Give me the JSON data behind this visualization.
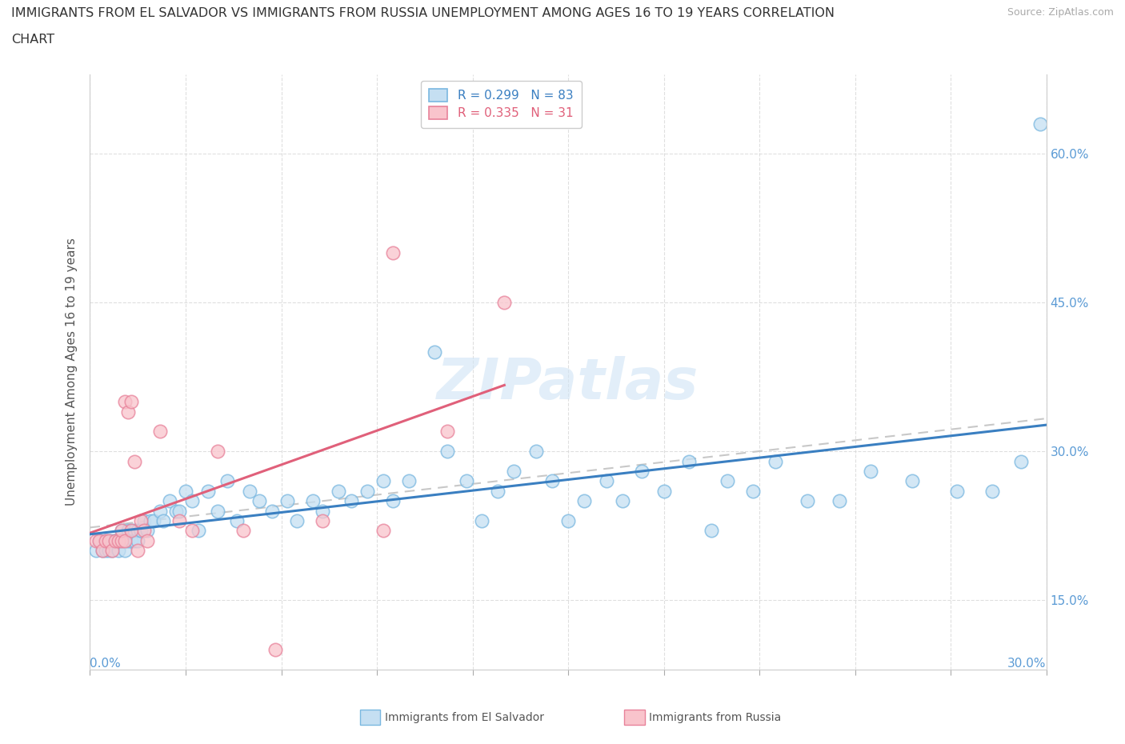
{
  "title_line1": "IMMIGRANTS FROM EL SALVADOR VS IMMIGRANTS FROM RUSSIA UNEMPLOYMENT AMONG AGES 16 TO 19 YEARS CORRELATION",
  "title_line2": "CHART",
  "source": "Source: ZipAtlas.com",
  "ylabel": "Unemployment Among Ages 16 to 19 years",
  "ytick_vals": [
    0.15,
    0.3,
    0.45,
    0.6
  ],
  "ytick_labels": [
    "15.0%",
    "30.0%",
    "45.0%",
    "60.0%"
  ],
  "legend_r1": "R = 0.299",
  "legend_n1": "N = 83",
  "legend_r2": "R = 0.335",
  "legend_n2": "N = 31",
  "el_salvador_color_edge": "#7ab8e0",
  "el_salvador_color_face": "#c5dff2",
  "russia_color_edge": "#e8829a",
  "russia_color_face": "#f9c4cc",
  "trend_blue": "#3a7fc1",
  "trend_pink": "#e0607a",
  "trend_gray": "#c8c8c8",
  "right_axis_color": "#5b9bd5",
  "xmin": 0.0,
  "xmax": 0.3,
  "ymin": 0.08,
  "ymax": 0.68,
  "el_salvador_x": [
    0.002,
    0.003,
    0.004,
    0.005,
    0.005,
    0.006,
    0.006,
    0.007,
    0.007,
    0.008,
    0.008,
    0.009,
    0.009,
    0.01,
    0.01,
    0.011,
    0.011,
    0.012,
    0.012,
    0.013,
    0.013,
    0.014,
    0.014,
    0.015,
    0.015,
    0.016,
    0.016,
    0.017,
    0.018,
    0.019,
    0.02,
    0.022,
    0.023,
    0.025,
    0.027,
    0.028,
    0.03,
    0.032,
    0.034,
    0.037,
    0.04,
    0.043,
    0.046,
    0.05,
    0.053,
    0.057,
    0.062,
    0.065,
    0.07,
    0.073,
    0.078,
    0.082,
    0.087,
    0.092,
    0.095,
    0.1,
    0.108,
    0.112,
    0.118,
    0.123,
    0.128,
    0.133,
    0.14,
    0.145,
    0.15,
    0.155,
    0.162,
    0.167,
    0.173,
    0.18,
    0.188,
    0.195,
    0.2,
    0.208,
    0.215,
    0.225,
    0.235,
    0.245,
    0.258,
    0.272,
    0.283,
    0.292,
    0.298
  ],
  "el_salvador_y": [
    0.2,
    0.21,
    0.2,
    0.21,
    0.2,
    0.21,
    0.2,
    0.21,
    0.2,
    0.21,
    0.21,
    0.21,
    0.2,
    0.22,
    0.21,
    0.21,
    0.2,
    0.22,
    0.21,
    0.22,
    0.21,
    0.22,
    0.21,
    0.22,
    0.21,
    0.22,
    0.22,
    0.23,
    0.22,
    0.23,
    0.23,
    0.24,
    0.23,
    0.25,
    0.24,
    0.24,
    0.26,
    0.25,
    0.22,
    0.26,
    0.24,
    0.27,
    0.23,
    0.26,
    0.25,
    0.24,
    0.25,
    0.23,
    0.25,
    0.24,
    0.26,
    0.25,
    0.26,
    0.27,
    0.25,
    0.27,
    0.4,
    0.3,
    0.27,
    0.23,
    0.26,
    0.28,
    0.3,
    0.27,
    0.23,
    0.25,
    0.27,
    0.25,
    0.28,
    0.26,
    0.29,
    0.22,
    0.27,
    0.26,
    0.29,
    0.25,
    0.25,
    0.28,
    0.27,
    0.26,
    0.26,
    0.29,
    0.63
  ],
  "russia_x": [
    0.002,
    0.003,
    0.004,
    0.005,
    0.006,
    0.007,
    0.008,
    0.009,
    0.01,
    0.01,
    0.011,
    0.011,
    0.012,
    0.013,
    0.013,
    0.014,
    0.015,
    0.016,
    0.017,
    0.018,
    0.022,
    0.028,
    0.032,
    0.04,
    0.048,
    0.058,
    0.073,
    0.092,
    0.095,
    0.112,
    0.13
  ],
  "russia_y": [
    0.21,
    0.21,
    0.2,
    0.21,
    0.21,
    0.2,
    0.21,
    0.21,
    0.21,
    0.22,
    0.21,
    0.35,
    0.34,
    0.22,
    0.35,
    0.29,
    0.2,
    0.23,
    0.22,
    0.21,
    0.32,
    0.23,
    0.22,
    0.3,
    0.22,
    0.1,
    0.23,
    0.22,
    0.5,
    0.32,
    0.45
  ]
}
